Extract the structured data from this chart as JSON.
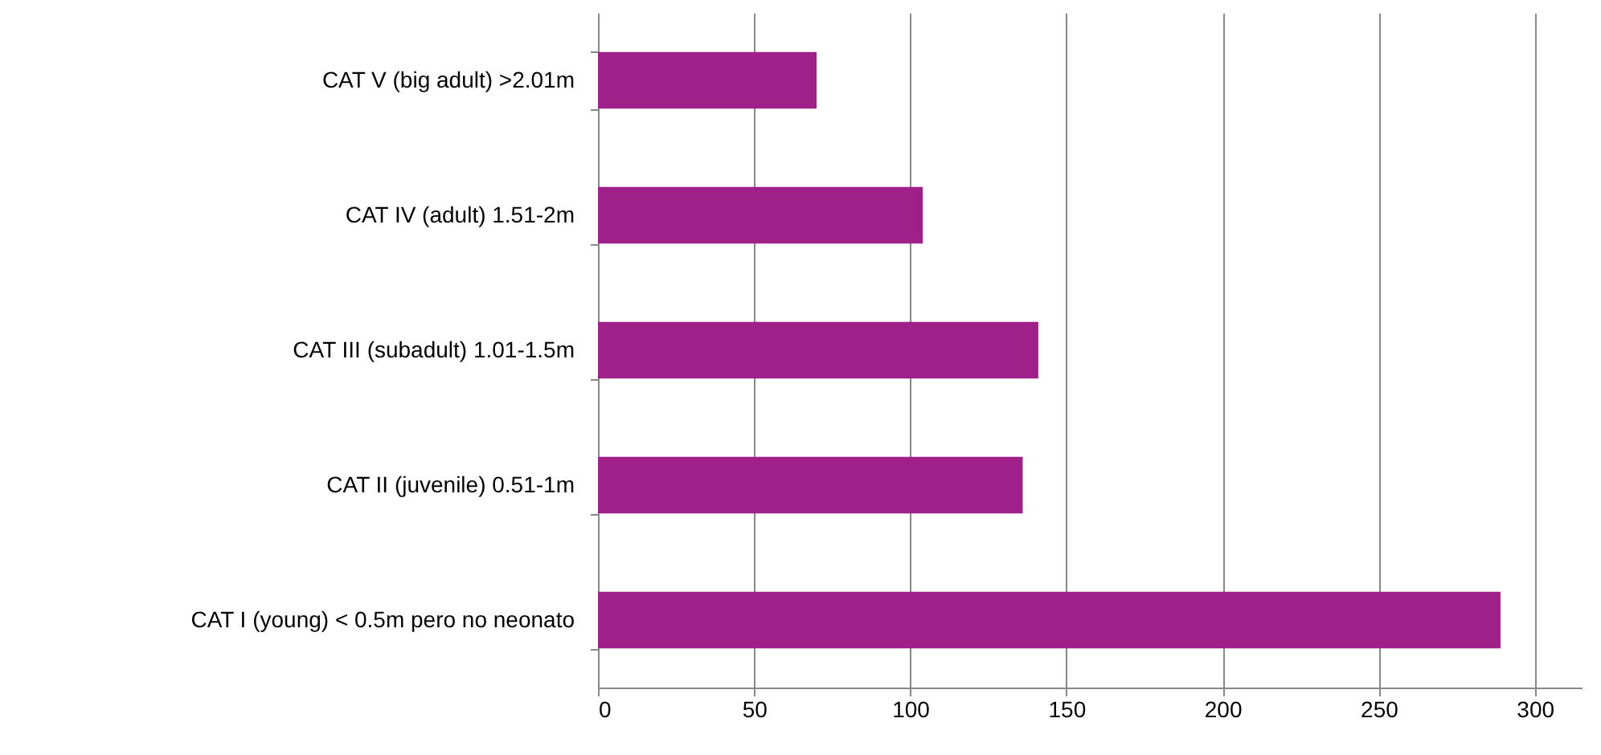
{
  "chart_data": {
    "type": "bar",
    "orientation": "horizontal",
    "categories": [
      "CAT V (big adult) >2.01m",
      "CAT IV (adult) 1.51-2m",
      "CAT III (subadult) 1.01-1.5m",
      "CAT II (juvenile) 0.51-1m",
      "CAT I (young) < 0.5m pero no neonato"
    ],
    "values": [
      70,
      104,
      141,
      136,
      289
    ],
    "color": "#a0208a",
    "xlim": [
      0,
      315
    ],
    "xticks": [
      0,
      50,
      100,
      150,
      200,
      250,
      300
    ],
    "grid": "x"
  }
}
